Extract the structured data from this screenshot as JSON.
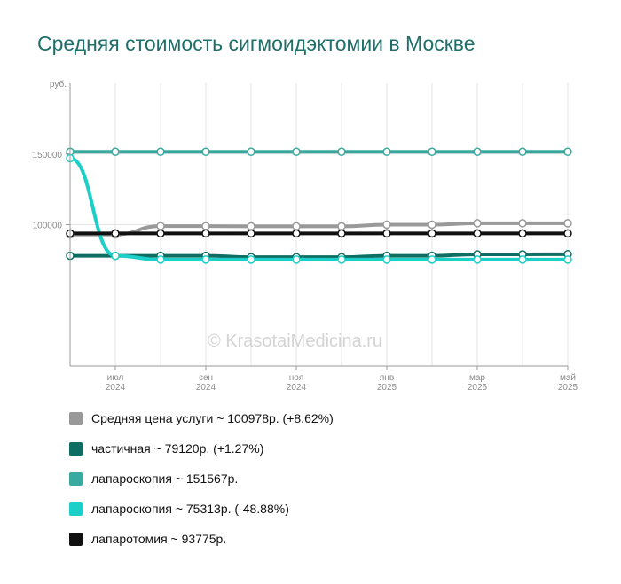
{
  "chart_data": {
    "type": "line",
    "title": "Средняя стоимость сигмоидэктомии в Москве",
    "ylabel": "руб.",
    "y_ticks": [
      {
        "value": 100000,
        "label": "100000"
      },
      {
        "value": 150000,
        "label": "150000"
      }
    ],
    "ylim": [
      0,
      200000
    ],
    "x": [
      "2024-06",
      "2024-07",
      "2024-08",
      "2024-09",
      "2024-10",
      "2024-11",
      "2024-12",
      "2025-01",
      "2025-02",
      "2025-03",
      "2025-04",
      "2025-05"
    ],
    "x_ticks": [
      {
        "index": 1,
        "month": "июл",
        "year": "2024"
      },
      {
        "index": 3,
        "month": "сен",
        "year": "2024"
      },
      {
        "index": 5,
        "month": "ноя",
        "year": "2024"
      },
      {
        "index": 7,
        "month": "янв",
        "year": "2025"
      },
      {
        "index": 9,
        "month": "мар",
        "year": "2025"
      },
      {
        "index": 11,
        "month": "май",
        "year": "2025"
      }
    ],
    "grid": true,
    "watermark": "© KrasotaiMedicina.ru",
    "series": [
      {
        "name": "Средняя цена услуги ~ 100978р. (+8.62%)",
        "color": "#999999",
        "values": [
          93000,
          93000,
          99000,
          99000,
          98800,
          98800,
          98800,
          100000,
          100000,
          101000,
          101000,
          101000
        ]
      },
      {
        "name": "частичная ~ 79120р. (+1.27%)",
        "color": "#0e6e63",
        "values": [
          78000,
          78000,
          78000,
          78000,
          77000,
          77000,
          77000,
          78000,
          78000,
          79000,
          79000,
          79120
        ]
      },
      {
        "name": "лапароскопия ~ 151567р.",
        "color": "#3aa99f",
        "values": [
          151567,
          151567,
          151567,
          151567,
          151567,
          151567,
          151567,
          151567,
          151567,
          151567,
          151567,
          151567
        ]
      },
      {
        "name": "лапароскопия ~ 75313р. (-48.88%)",
        "color": "#1ccfc9",
        "values": [
          147000,
          78000,
          75313,
          75313,
          75313,
          75313,
          75313,
          75313,
          75313,
          75313,
          75313,
          75313
        ]
      },
      {
        "name": "лапаротомия ~ 93775р.",
        "color": "#111111",
        "values": [
          93775,
          93775,
          93775,
          93775,
          93775,
          93775,
          93775,
          93775,
          93775,
          93775,
          93775,
          93775
        ]
      }
    ]
  }
}
